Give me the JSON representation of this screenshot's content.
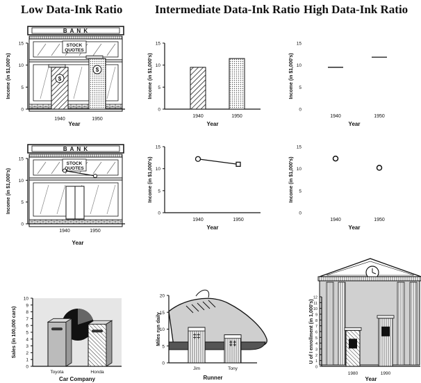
{
  "titles": {
    "low": "Low Data-Ink Ratio",
    "intermediate": "Intermediate Data-Ink Ratio",
    "high": "High Data-Ink Ratio"
  },
  "colors": {
    "ink": "#111111",
    "hatch": "#222222",
    "dot_fill": "#bbbbbb",
    "building_gray": "#cccccc",
    "shoe_gray": "#c8c8c8",
    "shoe_sole": "#555555",
    "pie_dark": "#111111",
    "chart_bg": "#e6e6e6"
  },
  "chart_data": [
    {
      "id": "low-bar",
      "type": "bar",
      "decoration": "bank-building",
      "categories": [
        "1940",
        "1950"
      ],
      "values": [
        9.5,
        11.5
      ],
      "ylim": [
        0,
        15
      ],
      "yticks": [
        0,
        5,
        10,
        15
      ],
      "xlabel": "Year",
      "ylabel": "Income (in $1,000's)",
      "building_text": "B A N K",
      "sign_text": "STOCK QUOTES"
    },
    {
      "id": "mid-bar",
      "type": "bar",
      "categories": [
        "1940",
        "1950"
      ],
      "values": [
        9.5,
        11.5
      ],
      "ylim": [
        0,
        15
      ],
      "yticks": [
        0,
        5,
        10,
        15
      ],
      "xlabel": "Year",
      "ylabel": "Income (in $1,000's)"
    },
    {
      "id": "high-bar",
      "type": "bar",
      "style": "level-lines",
      "categories": [
        "1940",
        "1950"
      ],
      "values": [
        9.5,
        11.8
      ],
      "ylim": [
        0,
        15
      ],
      "yticks": [
        0,
        5,
        10,
        15
      ],
      "xlabel": "Year",
      "ylabel": "Income (in $1,000's)"
    },
    {
      "id": "low-line",
      "type": "line",
      "decoration": "bank-building",
      "categories": [
        "1940",
        "1950"
      ],
      "values": [
        12.2,
        11.0
      ],
      "ylim": [
        0,
        15
      ],
      "yticks": [
        0,
        5,
        10,
        15
      ],
      "xlabel": "Year",
      "ylabel": "Income (in $1,000's)",
      "building_text": "B A N K",
      "sign_text": "STOCK QUOTES"
    },
    {
      "id": "mid-line",
      "type": "line",
      "categories": [
        "1940",
        "1950"
      ],
      "values": [
        12.2,
        11.0
      ],
      "ylim": [
        0,
        15
      ],
      "yticks": [
        0,
        5,
        10,
        15
      ],
      "xlabel": "Year",
      "ylabel": "Income (in $1,000's)"
    },
    {
      "id": "high-line",
      "type": "scatter",
      "categories": [
        "1940",
        "1950"
      ],
      "values": [
        12.3,
        10.2
      ],
      "ylim": [
        0,
        15
      ],
      "yticks": [
        0,
        5,
        10,
        15
      ],
      "xlabel": "Year",
      "ylabel": "Income (in $1,000's)"
    },
    {
      "id": "cars",
      "type": "bar",
      "decoration": "pie-background",
      "categories": [
        "Toyota",
        "Honda"
      ],
      "values": [
        6.5,
        6.2
      ],
      "ylim": [
        0,
        10
      ],
      "yticks": [
        0,
        1,
        2,
        3,
        4,
        5,
        6,
        7,
        8,
        9,
        10
      ],
      "xlabel": "Car Company",
      "ylabel": "Sales (in 100,000 cars)"
    },
    {
      "id": "runner",
      "type": "bar",
      "decoration": "running-shoe",
      "categories": [
        "Jim",
        "Tony"
      ],
      "values": [
        10.5,
        8.3
      ],
      "ylim": [
        0,
        20
      ],
      "yticks": [
        0,
        5,
        10,
        15,
        20
      ],
      "xlabel": "Runner",
      "ylabel": "Miles run daily"
    },
    {
      "id": "enrollment",
      "type": "bar",
      "decoration": "temple-building",
      "categories": [
        "1980",
        "1990"
      ],
      "values": [
        6.2,
        8.3
      ],
      "ylim": [
        0,
        12
      ],
      "yticks": [
        0,
        1,
        2,
        3,
        4,
        5,
        6,
        7,
        8,
        9,
        10,
        11,
        12
      ],
      "xlabel": "Year",
      "ylabel": "U of I enrollment (in 1,000's)"
    }
  ]
}
